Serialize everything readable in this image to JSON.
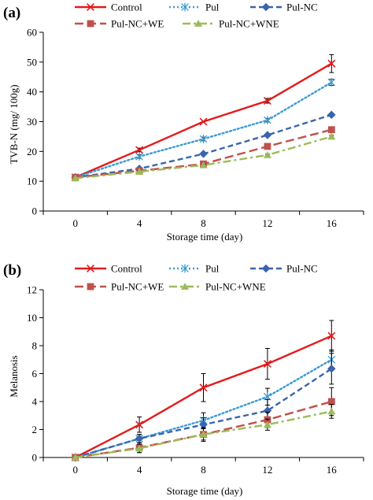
{
  "chart_data": [
    {
      "type": "line",
      "panel_label": "(a)",
      "title": "",
      "xlabel": "Storage time (day)",
      "ylabel": "TVB-N (mg/ 100g)",
      "x": [
        0,
        4,
        8,
        12,
        16
      ],
      "x_tick_labels": [
        "0",
        "4",
        "8",
        "12",
        "16"
      ],
      "ylim": [
        0,
        60
      ],
      "y_ticks": [
        0,
        10,
        20,
        30,
        40,
        50,
        60
      ],
      "y_tick_labels": [
        "0",
        "10",
        "20",
        "30",
        "40",
        "50",
        "60"
      ],
      "grid": false,
      "legend_position": "top",
      "series": [
        {
          "name": "Control",
          "color": "#e41a1c",
          "line": "solid",
          "marker": "x",
          "values": [
            11.3,
            20.5,
            30.0,
            37.0,
            49.5
          ],
          "errors": [
            0,
            0.6,
            0,
            0.8,
            3.0
          ]
        },
        {
          "name": "Pul",
          "color": "#3b9bd6",
          "line": "dotted",
          "marker": "asterisk",
          "values": [
            11.3,
            18.3,
            24.2,
            30.5,
            43.2
          ],
          "errors": [
            0,
            0.6,
            0.6,
            0.6,
            1.0
          ]
        },
        {
          "name": "Pul-NC",
          "color": "#3a64ad",
          "line": "dashed",
          "marker": "diamond",
          "values": [
            11.3,
            14.2,
            19.2,
            25.5,
            32.3
          ],
          "errors": [
            0,
            0.4,
            0.4,
            0.4,
            0.5
          ]
        },
        {
          "name": "Pul-NC+WE",
          "color": "#c0504d",
          "line": "longdash",
          "marker": "square",
          "values": [
            11.3,
            13.5,
            15.8,
            21.7,
            27.3
          ],
          "errors": [
            0,
            0.3,
            0.3,
            0.4,
            0.5
          ]
        },
        {
          "name": "Pul-NC+WNE",
          "color": "#9bbb59",
          "line": "dashdot",
          "marker": "triangle",
          "values": [
            11.0,
            13.2,
            15.4,
            18.8,
            25.0
          ],
          "errors": [
            0,
            0.3,
            0.3,
            0.3,
            0.4
          ]
        }
      ]
    },
    {
      "type": "line",
      "panel_label": "(b)",
      "title": "",
      "xlabel": "Storage time (day)",
      "ylabel": "Melanosis",
      "x": [
        0,
        4,
        8,
        12,
        16
      ],
      "x_tick_labels": [
        "0",
        "4",
        "8",
        "12",
        "16"
      ],
      "ylim": [
        0,
        12
      ],
      "y_ticks": [
        0,
        2,
        4,
        6,
        8,
        10,
        12
      ],
      "y_tick_labels": [
        "0",
        "2",
        "4",
        "6",
        "8",
        "10",
        "12"
      ],
      "grid": false,
      "legend_position": "top",
      "series": [
        {
          "name": "Control",
          "color": "#e41a1c",
          "line": "solid",
          "marker": "x",
          "values": [
            0.0,
            2.35,
            5.0,
            6.7,
            8.7
          ],
          "errors": [
            0,
            0.55,
            1.0,
            1.1,
            1.1
          ]
        },
        {
          "name": "Pul",
          "color": "#3b9bd6",
          "line": "dotted",
          "marker": "asterisk",
          "values": [
            0.0,
            1.35,
            2.65,
            4.35,
            7.0
          ],
          "errors": [
            0,
            0.3,
            0.55,
            0.6,
            0.7
          ]
        },
        {
          "name": "Pul-NC",
          "color": "#3a64ad",
          "line": "dashed",
          "marker": "diamond",
          "values": [
            0.0,
            1.35,
            2.35,
            3.35,
            6.35
          ],
          "errors": [
            0,
            0.3,
            0.5,
            0.8,
            1.1
          ]
        },
        {
          "name": "Pul-NC+WE",
          "color": "#c0504d",
          "line": "longdash",
          "marker": "square",
          "values": [
            0.0,
            0.7,
            1.65,
            2.7,
            4.0
          ],
          "errors": [
            0,
            0.35,
            0.5,
            0.55,
            1.0
          ]
        },
        {
          "name": "Pul-NC+WNE",
          "color": "#9bbb59",
          "line": "dashdot",
          "marker": "triangle",
          "values": [
            0.0,
            0.65,
            1.65,
            2.35,
            3.3
          ],
          "errors": [
            0,
            0.3,
            0.4,
            0.4,
            0.5
          ]
        }
      ]
    }
  ]
}
